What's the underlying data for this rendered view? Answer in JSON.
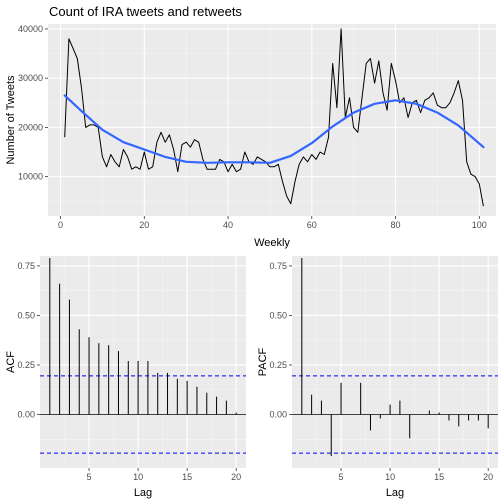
{
  "chart_data": [
    {
      "type": "line",
      "title": "Count of IRA tweets and retweets",
      "xlabel": "Weekly",
      "ylabel": "Number of Tweets",
      "xlim": [
        -3,
        104
      ],
      "ylim": [
        2000,
        41000
      ],
      "x_ticks": [
        0,
        20,
        40,
        60,
        80,
        100
      ],
      "y_ticks": [
        10000,
        20000,
        30000,
        40000
      ],
      "grid": true,
      "series": [
        {
          "values": [
            [
              1,
              18000
            ],
            [
              2,
              38000
            ],
            [
              3,
              36000
            ],
            [
              4,
              34000
            ],
            [
              5,
              28000
            ],
            [
              6,
              20000
            ],
            [
              7,
              20500
            ],
            [
              8,
              20500
            ],
            [
              9,
              20000
            ],
            [
              10,
              14000
            ],
            [
              11,
              12000
            ],
            [
              12,
              14500
            ],
            [
              13,
              13000
            ],
            [
              14,
              12000
            ],
            [
              15,
              15500
            ],
            [
              16,
              14000
            ],
            [
              17,
              11500
            ],
            [
              18,
              12000
            ],
            [
              19,
              11500
            ],
            [
              20,
              15000
            ],
            [
              21,
              11500
            ],
            [
              22,
              12000
            ],
            [
              23,
              17000
            ],
            [
              24,
              19000
            ],
            [
              25,
              17000
            ],
            [
              26,
              18500
            ],
            [
              27,
              15500
            ],
            [
              28,
              11000
            ],
            [
              29,
              16500
            ],
            [
              30,
              17000
            ],
            [
              31,
              16000
            ],
            [
              32,
              17500
            ],
            [
              33,
              17000
            ],
            [
              34,
              13500
            ],
            [
              35,
              11500
            ],
            [
              36,
              11500
            ],
            [
              37,
              11500
            ],
            [
              38,
              13500
            ],
            [
              39,
              13000
            ],
            [
              40,
              11000
            ],
            [
              41,
              12500
            ],
            [
              42,
              11000
            ],
            [
              43,
              11500
            ],
            [
              44,
              15000
            ],
            [
              45,
              13000
            ],
            [
              46,
              12500
            ],
            [
              47,
              14000
            ],
            [
              48,
              13500
            ],
            [
              49,
              13000
            ],
            [
              50,
              12000
            ],
            [
              51,
              12000
            ],
            [
              52,
              12500
            ],
            [
              53,
              9000
            ],
            [
              54,
              6000
            ],
            [
              55,
              4500
            ],
            [
              56,
              9000
            ],
            [
              57,
              12500
            ],
            [
              58,
              14000
            ],
            [
              59,
              13000
            ],
            [
              60,
              14500
            ],
            [
              61,
              13500
            ],
            [
              62,
              15000
            ],
            [
              63,
              14500
            ],
            [
              64,
              18000
            ],
            [
              65,
              33000
            ],
            [
              66,
              24000
            ],
            [
              67,
              40000
            ],
            [
              68,
              22000
            ],
            [
              69,
              26000
            ],
            [
              70,
              20000
            ],
            [
              71,
              19000
            ],
            [
              72,
              26000
            ],
            [
              73,
              33000
            ],
            [
              74,
              34000
            ],
            [
              75,
              29000
            ],
            [
              76,
              33500
            ],
            [
              77,
              27000
            ],
            [
              78,
              23500
            ],
            [
              79,
              33000
            ],
            [
              80,
              29500
            ],
            [
              81,
              25000
            ],
            [
              82,
              26000
            ],
            [
              83,
              22000
            ],
            [
              84,
              25000
            ],
            [
              85,
              25500
            ],
            [
              86,
              23000
            ],
            [
              87,
              25500
            ],
            [
              88,
              26000
            ],
            [
              89,
              27000
            ],
            [
              90,
              24500
            ],
            [
              91,
              24000
            ],
            [
              92,
              24000
            ],
            [
              93,
              25000
            ],
            [
              94,
              27000
            ],
            [
              95,
              29500
            ],
            [
              96,
              25500
            ],
            [
              97,
              13000
            ],
            [
              98,
              10500
            ],
            [
              99,
              10000
            ],
            [
              100,
              8500
            ],
            [
              101,
              4000
            ]
          ]
        },
        {
          "values": [
            [
              1,
              26500
            ],
            [
              5,
              23300
            ],
            [
              10,
              19500
            ],
            [
              15,
              17000
            ],
            [
              20,
              15500
            ],
            [
              25,
              14000
            ],
            [
              30,
              13000
            ],
            [
              35,
              12800
            ],
            [
              40,
              12900
            ],
            [
              45,
              12900
            ],
            [
              50,
              12800
            ],
            [
              55,
              14200
            ],
            [
              60,
              16800
            ],
            [
              65,
              20200
            ],
            [
              70,
              23000
            ],
            [
              75,
              24800
            ],
            [
              80,
              25500
            ],
            [
              85,
              24800
            ],
            [
              90,
              23000
            ],
            [
              95,
              20400
            ],
            [
              101,
              16000
            ]
          ]
        }
      ]
    },
    {
      "type": "bar",
      "xlabel": "Lag",
      "ylabel": "ACF",
      "xlim": [
        0,
        21
      ],
      "ylim": [
        -0.27,
        0.8
      ],
      "x_ticks": [
        5,
        10,
        15,
        20
      ],
      "y_ticks": [
        0.0,
        0.25,
        0.5,
        0.75
      ],
      "confidence_bound": 0.195,
      "lags": [
        1,
        2,
        3,
        4,
        5,
        6,
        7,
        8,
        9,
        10,
        11,
        12,
        13,
        14,
        15,
        16,
        17,
        18,
        19,
        20
      ],
      "values": [
        0.79,
        0.66,
        0.58,
        0.43,
        0.39,
        0.36,
        0.35,
        0.32,
        0.27,
        0.27,
        0.27,
        0.21,
        0.21,
        0.18,
        0.17,
        0.14,
        0.11,
        0.09,
        0.07,
        0.01
      ]
    },
    {
      "type": "bar",
      "xlabel": "Lag",
      "ylabel": "PACF",
      "xlim": [
        0,
        21
      ],
      "ylim": [
        -0.27,
        0.8
      ],
      "x_ticks": [
        5,
        10,
        15,
        20
      ],
      "y_ticks": [
        0.0,
        0.25,
        0.5,
        0.75
      ],
      "confidence_bound": 0.195,
      "lags": [
        1,
        2,
        3,
        4,
        5,
        6,
        7,
        8,
        9,
        10,
        11,
        12,
        13,
        14,
        15,
        16,
        17,
        18,
        19,
        20
      ],
      "values": [
        0.79,
        0.1,
        0.07,
        -0.21,
        0.16,
        0.0,
        0.16,
        -0.08,
        -0.02,
        0.05,
        0.07,
        -0.12,
        0.0,
        0.02,
        0.01,
        -0.03,
        -0.06,
        -0.03,
        -0.03,
        -0.07
      ]
    }
  ]
}
